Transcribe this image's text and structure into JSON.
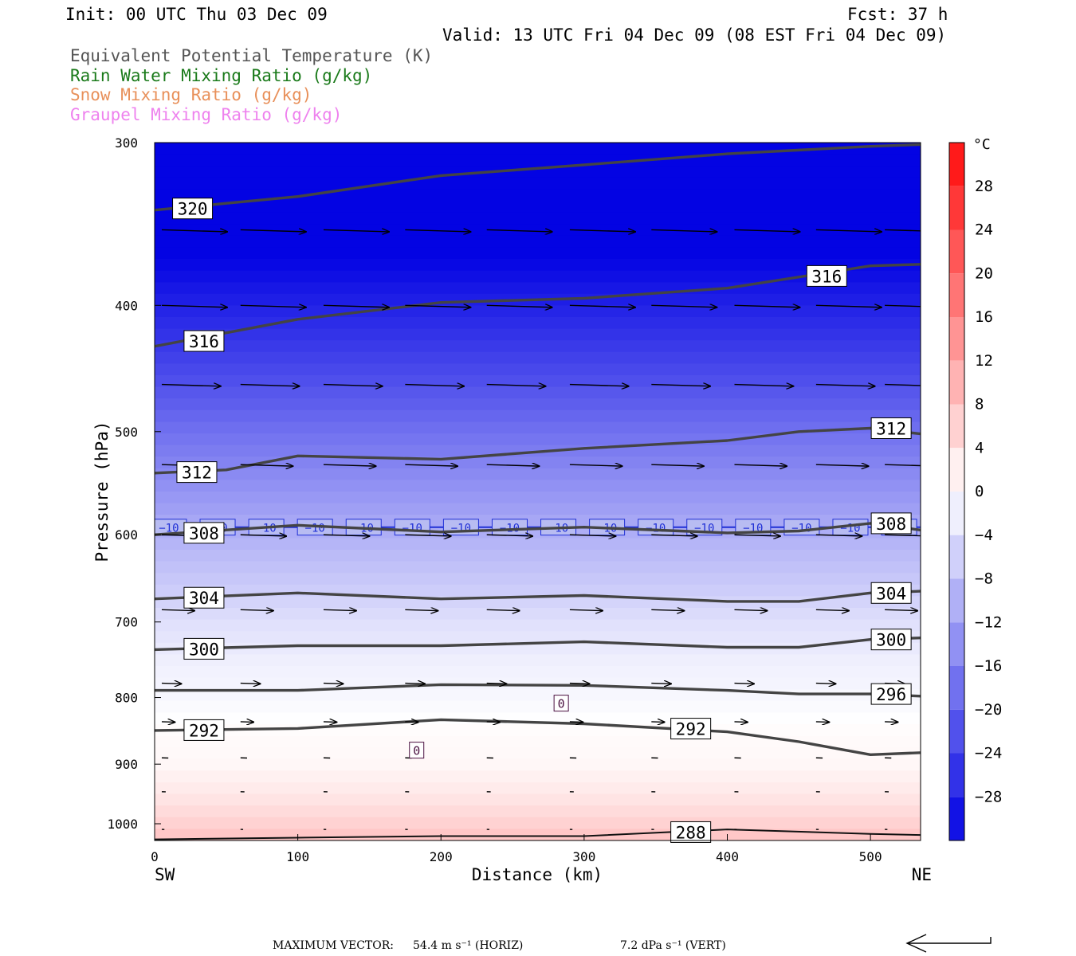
{
  "header": {
    "init": "Init: 00 UTC Thu 03 Dec 09",
    "fcst": "Fcst:   37 h",
    "valid": "Valid: 13 UTC Fri 04 Dec 09 (08 EST Fri 04 Dec 09)"
  },
  "legend": [
    {
      "label": "Equivalent Potential Temperature (K)",
      "color": "#555555"
    },
    {
      "label": "Rain Water Mixing Ratio (g/kg)",
      "color": "#1a7a1a"
    },
    {
      "label": "Snow Mixing Ratio (g/kg)",
      "color": "#e8905a"
    },
    {
      "label": "Graupel Mixing Ratio (g/kg)",
      "color": "#ee82ee"
    }
  ],
  "footer": {
    "max_vector_label": "MAXIMUM VECTOR:",
    "horiz": "54.4 m s⁻¹ (HORIZ)",
    "vert": "7.2 dPa s⁻¹ (VERT)"
  },
  "chart_data": {
    "type": "heatmap",
    "xlabel": "Distance (km)",
    "ylabel": "Pressure (hPa)",
    "xlim": [
      0,
      535
    ],
    "ylim": [
      1030,
      300
    ],
    "y_scale": "log",
    "x_ticks": [
      0,
      100,
      200,
      300,
      400,
      500
    ],
    "y_ticks": [
      300,
      400,
      500,
      600,
      700,
      800,
      900,
      1000
    ],
    "x_end_labels": {
      "left": "SW",
      "right": "NE"
    },
    "colorbar": {
      "unit": "°C",
      "range": [
        -32,
        32
      ],
      "step": 4,
      "tick_labels": [
        "28",
        "24",
        "20",
        "16",
        "12",
        "8",
        "4",
        "0",
        "−4",
        "−8",
        "−12",
        "−16",
        "−20",
        "−24",
        "−28"
      ],
      "tick_values": [
        28,
        24,
        20,
        16,
        12,
        8,
        4,
        0,
        -4,
        -8,
        -12,
        -16,
        -20,
        -24,
        -28
      ]
    },
    "temperature_field": {
      "description_pressure_levels": [
        300,
        350,
        400,
        450,
        500,
        550,
        600,
        650,
        700,
        750,
        800,
        850,
        900,
        950,
        1000,
        1030
      ],
      "temperature_c": [
        -40,
        -34,
        -28,
        -23,
        -18,
        -14,
        -10,
        -7,
        -4,
        -2,
        -1,
        0.5,
        1,
        3,
        6,
        8
      ]
    },
    "theta_e_contours": [
      {
        "value": 320,
        "label": "320",
        "x": [
          0,
          100,
          200,
          300,
          400,
          500,
          535
        ],
        "p": [
          338,
          330,
          318,
          312,
          306,
          302,
          301
        ]
      },
      {
        "value": 316,
        "label": "316",
        "x": [
          0,
          100,
          200,
          300,
          400,
          500,
          535
        ],
        "p": [
          430,
          410,
          398,
          395,
          388,
          373,
          372
        ]
      },
      {
        "value": 312,
        "label": "312",
        "x": [
          0,
          50,
          100,
          200,
          300,
          400,
          450,
          500,
          535
        ],
        "p": [
          538,
          535,
          522,
          525,
          515,
          508,
          500,
          497,
          502
        ]
      },
      {
        "value": 308,
        "label": "308",
        "x": [
          0,
          100,
          200,
          300,
          400,
          450,
          500,
          535
        ],
        "p": [
          600,
          590,
          597,
          592,
          598,
          596,
          588,
          595
        ]
      },
      {
        "value": 304,
        "label": "304",
        "x": [
          0,
          100,
          200,
          300,
          400,
          450,
          500,
          535
        ],
        "p": [
          672,
          665,
          672,
          668,
          675,
          675,
          665,
          663
        ]
      },
      {
        "value": 300,
        "label": "300",
        "x": [
          0,
          100,
          200,
          300,
          400,
          450,
          500,
          535
        ],
        "p": [
          735,
          730,
          730,
          725,
          732,
          732,
          722,
          720
        ]
      },
      {
        "value": 296,
        "label": "296",
        "x": [
          0,
          100,
          200,
          300,
          400,
          450,
          500,
          535
        ],
        "p": [
          790,
          790,
          782,
          783,
          790,
          795,
          795,
          798
        ]
      },
      {
        "value": 292,
        "label": "292",
        "x": [
          0,
          100,
          200,
          300,
          400,
          450,
          500,
          535
        ],
        "p": [
          848,
          845,
          832,
          838,
          850,
          865,
          885,
          882
        ]
      },
      {
        "value": 288,
        "label": "288",
        "x": [
          0,
          100,
          200,
          300,
          400,
          500,
          535
        ],
        "p": [
          1028,
          1025,
          1022,
          1022,
          1010,
          1018,
          1020
        ]
      }
    ],
    "isotherms": [
      {
        "value": -10,
        "label": "−10",
        "p": 592
      }
    ],
    "zero_isotherm": {
      "label": "0"
    },
    "wind_vectors": {
      "x": [
        5,
        60,
        118,
        175,
        232,
        290,
        347,
        405,
        462,
        510
      ],
      "levels": [
        {
          "p": 350,
          "u": 10,
          "w": 0
        },
        {
          "p": 400,
          "u": 10,
          "w": 0
        },
        {
          "p": 460,
          "u": 9,
          "w": 0
        },
        {
          "p": 530,
          "u": 8,
          "w": 0
        },
        {
          "p": 600,
          "u": 7,
          "w": 0
        },
        {
          "p": 685,
          "u": 5,
          "w": 0
        },
        {
          "p": 780,
          "u": 3,
          "w": 0
        },
        {
          "p": 835,
          "u": 2,
          "w": 0
        },
        {
          "p": 890,
          "u": 1,
          "w": 0
        },
        {
          "p": 945,
          "u": 0.6,
          "w": 0
        },
        {
          "p": 1010,
          "u": 0.4,
          "w": 0
        }
      ]
    }
  }
}
